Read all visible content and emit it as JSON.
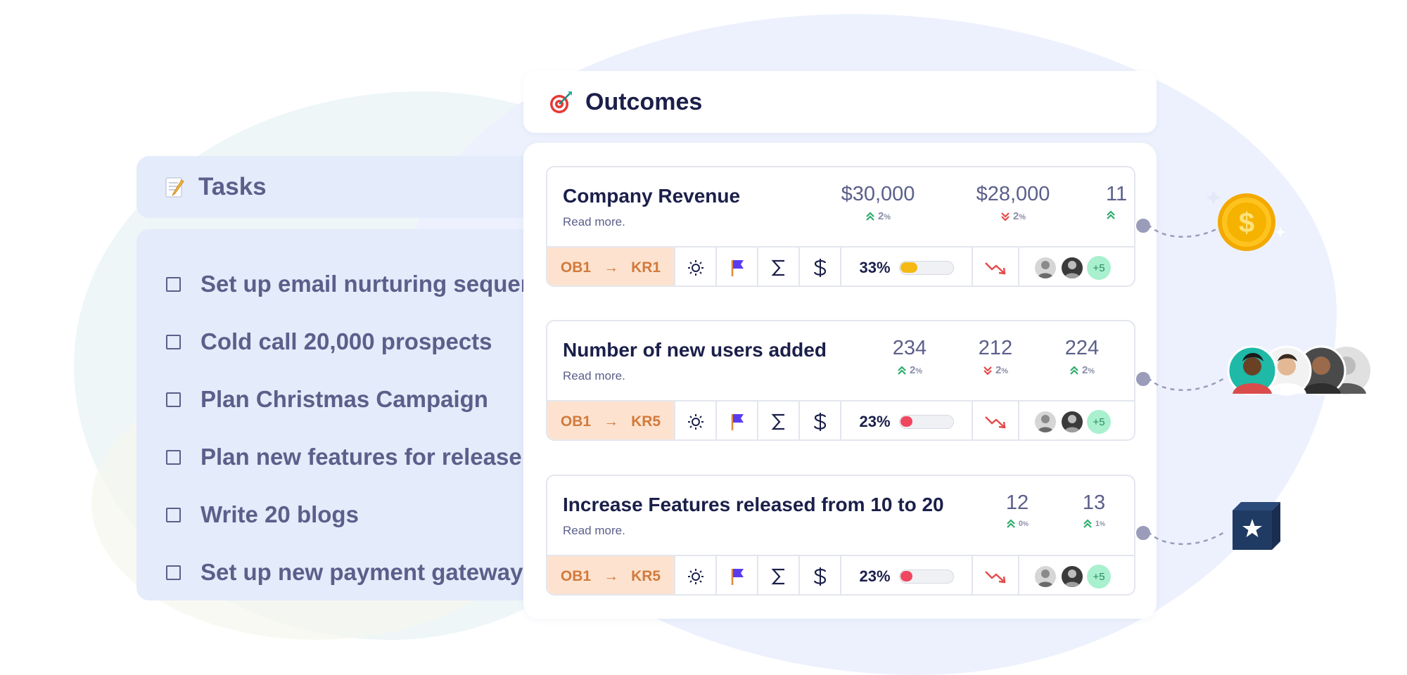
{
  "tasks": {
    "title": "Tasks",
    "icon": "memo-icon",
    "items": [
      {
        "label": "Set up email nurturing sequence"
      },
      {
        "label": "Cold call 20,000 prospects"
      },
      {
        "label": "Plan Christmas Campaign"
      },
      {
        "label": "Plan new features for release"
      },
      {
        "label": "Write 20 blogs"
      },
      {
        "label": "Set up new payment gateway"
      }
    ]
  },
  "outcomes": {
    "title": "Outcomes",
    "icon": "target-icon",
    "cards": [
      {
        "title": "Company Revenue",
        "read_more": "Read more.",
        "metrics": [
          {
            "value": "$30,000",
            "change": "2",
            "unit": "%",
            "dir": "up"
          },
          {
            "value": "$28,000",
            "change": "2",
            "unit": "%",
            "dir": "down"
          },
          {
            "value": "11",
            "change": "",
            "unit": "",
            "dir": "up"
          }
        ],
        "okr": {
          "objective": "OB1",
          "arrow": "→",
          "key_result": "KR1"
        },
        "progress": {
          "label": "33%",
          "value": 33,
          "color": "#f5b914"
        },
        "others_count": "+5"
      },
      {
        "title": "Number of new users added",
        "read_more": "Read more.",
        "metrics": [
          {
            "value": "234",
            "change": "2",
            "unit": "%",
            "dir": "up"
          },
          {
            "value": "212",
            "change": "2",
            "unit": "%",
            "dir": "down"
          },
          {
            "value": "224",
            "change": "2",
            "unit": "%",
            "dir": "up"
          }
        ],
        "okr": {
          "objective": "OB1",
          "arrow": "→",
          "key_result": "KR5"
        },
        "progress": {
          "label": "23%",
          "value": 23,
          "color": "#f0465f"
        },
        "others_count": "+5"
      },
      {
        "title": "Increase Features released from 10 to 20",
        "read_more": "Read more.",
        "metrics": [
          {
            "value": "12",
            "change": "0",
            "unit": "%",
            "dir": "up"
          },
          {
            "value": "13",
            "change": "1",
            "unit": "%",
            "dir": "up"
          }
        ],
        "okr": {
          "objective": "OB1",
          "arrow": "→",
          "key_result": "KR5"
        },
        "progress": {
          "label": "23%",
          "value": 23,
          "color": "#f0465f"
        },
        "others_count": "+5"
      }
    ]
  },
  "colors": {
    "accent_navy": "#1b1f4a",
    "muted": "#5b5f8a",
    "okr_bg": "#fde3cf",
    "okr_text": "#d27a3d",
    "up": "#2eac6c",
    "down": "#e44a4a"
  },
  "side_icons": [
    "coin-dollar-icon",
    "team-avatars",
    "star-box-icon"
  ]
}
